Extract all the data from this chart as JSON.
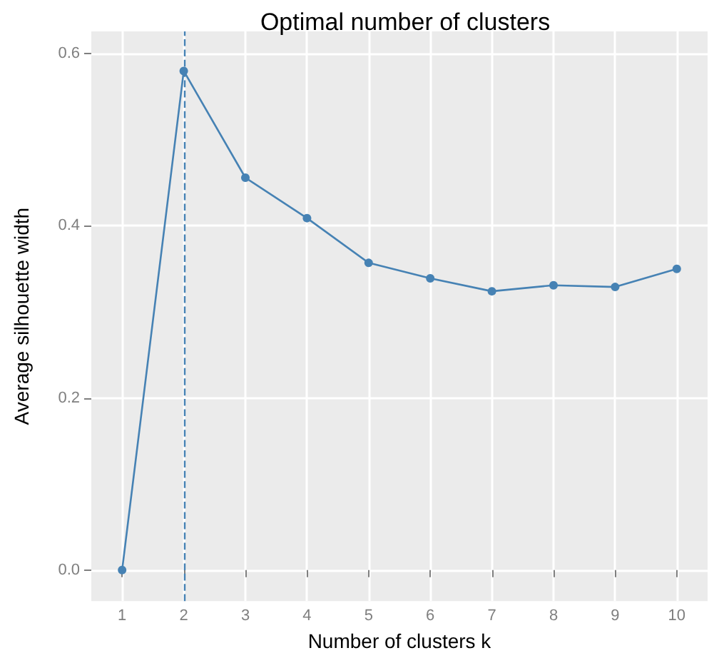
{
  "chart_data": {
    "type": "line",
    "title": "Optimal number of clusters",
    "xlabel": "Number of clusters k",
    "ylabel": "Average silhouette width",
    "x": [
      1,
      2,
      3,
      4,
      5,
      6,
      7,
      8,
      9,
      10
    ],
    "xlim": [
      0.5,
      10.5
    ],
    "xticks": [
      1,
      2,
      3,
      4,
      5,
      6,
      7,
      8,
      9,
      10
    ],
    "series": [
      {
        "color": "#4682b4",
        "values": [
          0,
          0.58,
          0.456,
          0.409,
          0.357,
          0.339,
          0.324,
          0.331,
          0.329,
          0.35
        ]
      }
    ],
    "ylim": [
      -0.036,
      0.626
    ],
    "yticks": [
      {
        "value": 0,
        "label": "0.0"
      },
      {
        "value": 0.2,
        "label": "0.2"
      },
      {
        "value": 0.4,
        "label": "0.4"
      },
      {
        "value": 0.6,
        "label": "0.6"
      }
    ],
    "ref_lines": [
      {
        "axis": "x",
        "value": 2,
        "color": "#4682b4",
        "line_style": "dashed"
      }
    ],
    "grid": true,
    "marker": "circle",
    "line_style": "solid"
  }
}
